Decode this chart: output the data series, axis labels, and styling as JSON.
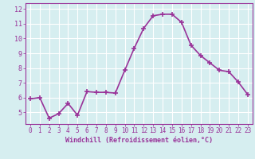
{
  "x": [
    0,
    1,
    2,
    3,
    4,
    5,
    6,
    7,
    8,
    9,
    10,
    11,
    12,
    13,
    14,
    15,
    16,
    17,
    18,
    19,
    20,
    21,
    22,
    23
  ],
  "y": [
    5.9,
    6.0,
    4.6,
    4.9,
    5.6,
    4.8,
    6.4,
    6.35,
    6.35,
    6.3,
    7.85,
    9.35,
    10.7,
    11.55,
    11.65,
    11.65,
    11.1,
    9.55,
    8.85,
    8.35,
    7.85,
    7.75,
    7.05,
    6.2
  ],
  "line_color": "#993399",
  "marker": "+",
  "marker_size": 4,
  "xlabel": "Windchill (Refroidissement éolien,°C)",
  "xlim": [
    -0.5,
    23.5
  ],
  "ylim": [
    4.2,
    12.4
  ],
  "yticks": [
    5,
    6,
    7,
    8,
    9,
    10,
    11,
    12
  ],
  "xticks": [
    0,
    1,
    2,
    3,
    4,
    5,
    6,
    7,
    8,
    9,
    10,
    11,
    12,
    13,
    14,
    15,
    16,
    17,
    18,
    19,
    20,
    21,
    22,
    23
  ],
  "bg_color": "#d6eef0",
  "grid_color": "#ffffff",
  "tick_color": "#993399",
  "label_color": "#993399",
  "line_width": 1.2,
  "spine_color": "#993399"
}
